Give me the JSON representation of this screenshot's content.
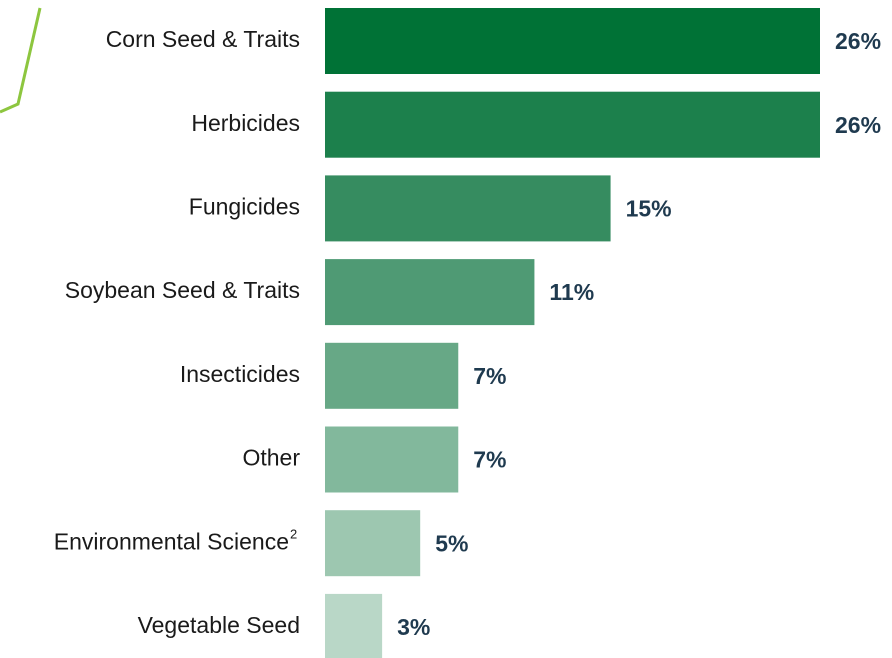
{
  "chart_data": {
    "type": "bar",
    "orientation": "horizontal",
    "categories": [
      "Corn Seed & Traits",
      "Herbicides",
      "Fungicides",
      "Soybean Seed & Traits",
      "Insecticides",
      "Other",
      "Environmental Science",
      "Vegetable Seed"
    ],
    "category_superscripts": [
      null,
      null,
      null,
      null,
      null,
      null,
      "2",
      null
    ],
    "values": [
      26,
      26,
      15,
      11,
      7,
      7,
      5,
      3
    ],
    "value_labels": [
      "26%",
      "26%",
      "15%",
      "11%",
      "7%",
      "7%",
      "5%",
      "3%"
    ],
    "colors": [
      "#007236",
      "#1c804c",
      "#368c60",
      "#4f9a74",
      "#67a886",
      "#82b89c",
      "#9dc7b0",
      "#b9d7c7"
    ]
  }
}
